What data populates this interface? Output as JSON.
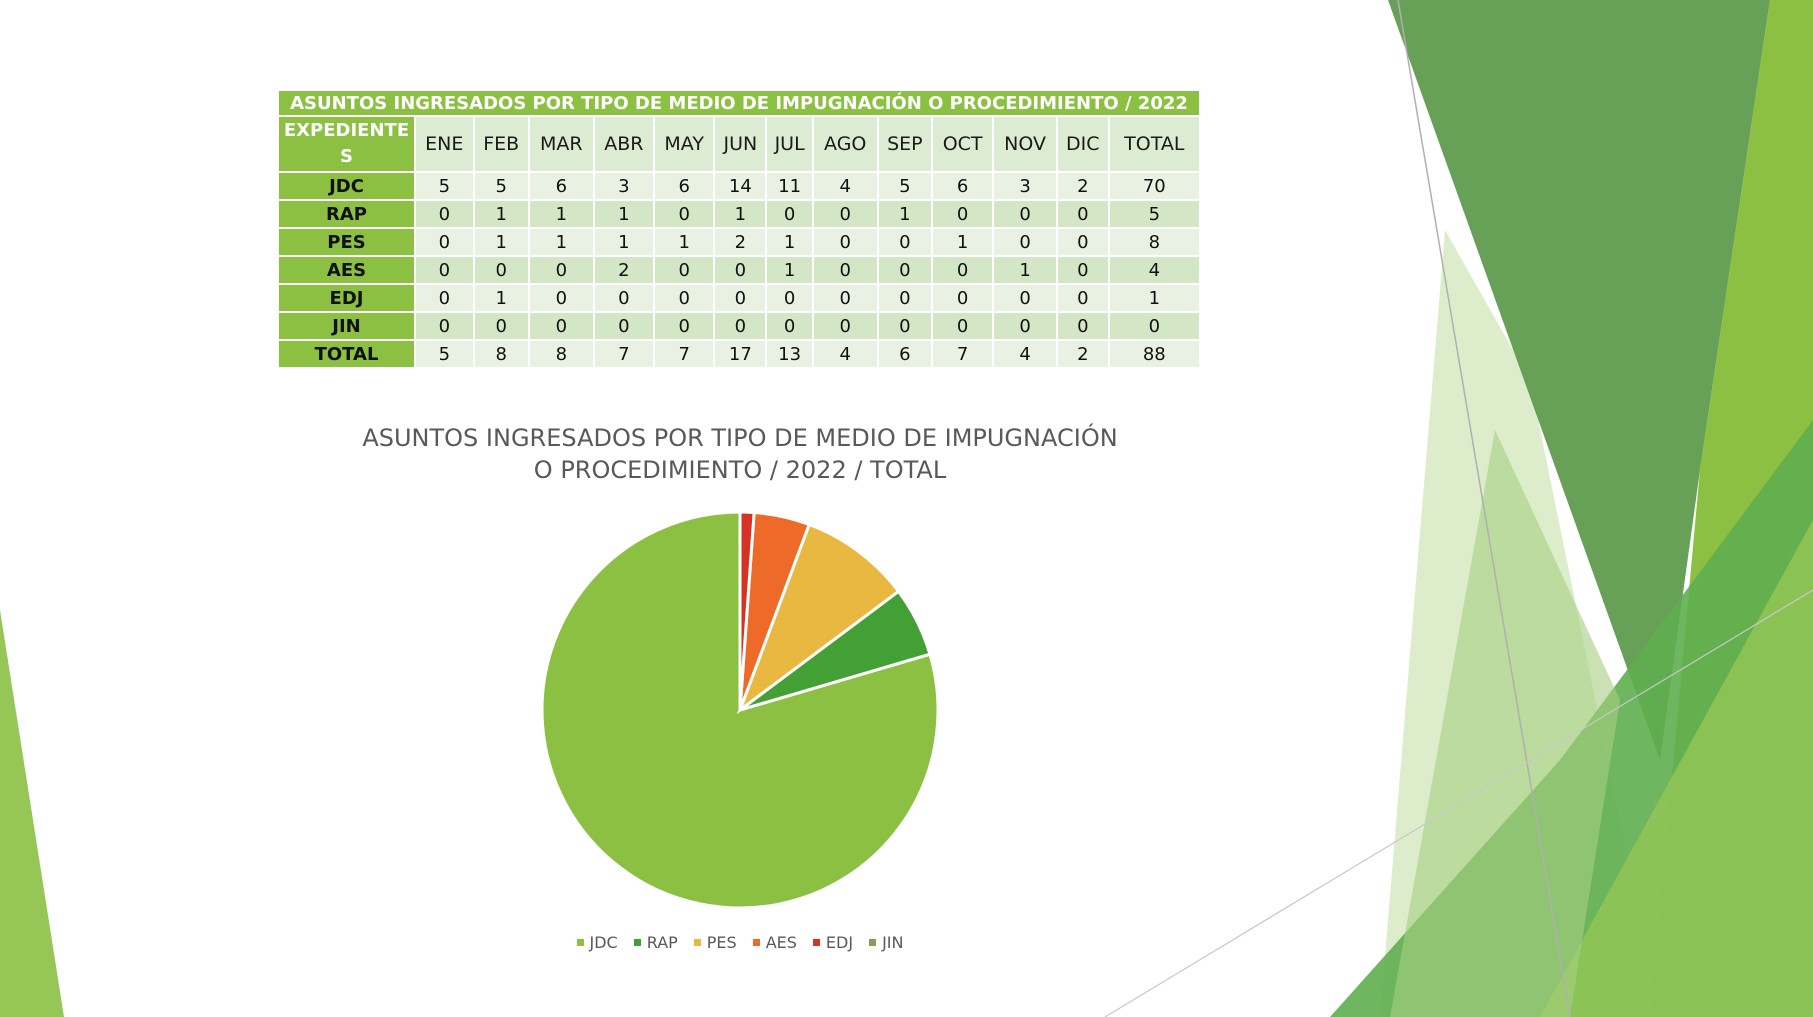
{
  "table": {
    "title": "ASUNTOS INGRESADOS POR TIPO DE MEDIO DE IMPUGNACIÓN O PROCEDIMIENTO / 2022",
    "corner_header": "EXPEDIENTES",
    "columns": [
      "ENE",
      "FEB",
      "MAR",
      "ABR",
      "MAY",
      "JUN",
      "JUL",
      "AGO",
      "SEP",
      "OCT",
      "NOV",
      "DIC",
      "TOTAL"
    ],
    "rows": [
      {
        "label": "JDC",
        "values": [
          "5",
          "5",
          "6",
          "3",
          "6",
          "14",
          "11",
          "4",
          "5",
          "6",
          "3",
          "2",
          "70"
        ]
      },
      {
        "label": "RAP",
        "values": [
          "0",
          "1",
          "1",
          "1",
          "0",
          "1",
          "0",
          "0",
          "1",
          "0",
          "0",
          "0",
          "5"
        ]
      },
      {
        "label": "PES",
        "values": [
          "0",
          "1",
          "1",
          "1",
          "1",
          "2",
          "1",
          "0",
          "0",
          "1",
          "0",
          "0",
          "8"
        ]
      },
      {
        "label": "AES",
        "values": [
          "0",
          "0",
          "0",
          "2",
          "0",
          "0",
          "1",
          "0",
          "0",
          "0",
          "1",
          "0",
          "4"
        ]
      },
      {
        "label": "EDJ",
        "values": [
          "0",
          "1",
          "0",
          "0",
          "0",
          "0",
          "0",
          "0",
          "0",
          "0",
          "0",
          "0",
          "1"
        ]
      },
      {
        "label": "JIN",
        "values": [
          "0",
          "0",
          "0",
          "0",
          "0",
          "0",
          "0",
          "0",
          "0",
          "0",
          "0",
          "0",
          "0"
        ]
      },
      {
        "label": "TOTAL",
        "values": [
          "5",
          "8",
          "8",
          "7",
          "7",
          "17",
          "13",
          "4",
          "6",
          "7",
          "4",
          "2",
          "88"
        ]
      }
    ]
  },
  "chart_data": {
    "type": "pie",
    "title": "ASUNTOS INGRESADOS POR TIPO DE MEDIO DE IMPUGNACIÓN O PROCEDIMIENTO / 2022 / TOTAL",
    "title_line1": "ASUNTOS INGRESADOS POR TIPO DE MEDIO DE IMPUGNACIÓN",
    "title_line2": "O PROCEDIMIENTO / 2022 / TOTAL",
    "categories": [
      "JDC",
      "RAP",
      "PES",
      "AES",
      "EDJ",
      "JIN"
    ],
    "values": [
      70,
      5,
      8,
      4,
      1,
      0
    ],
    "colors": [
      "#8bc043",
      "#43a035",
      "#e9b840",
      "#ee6a28",
      "#d63325",
      "#8c9a5a"
    ],
    "legend_position": "bottom"
  },
  "theme": {
    "accent": "#8bc043",
    "header_fill": "#dcecd2",
    "row_fill_light": "#e9f2e2",
    "row_fill_dark": "#d3e6c6"
  }
}
